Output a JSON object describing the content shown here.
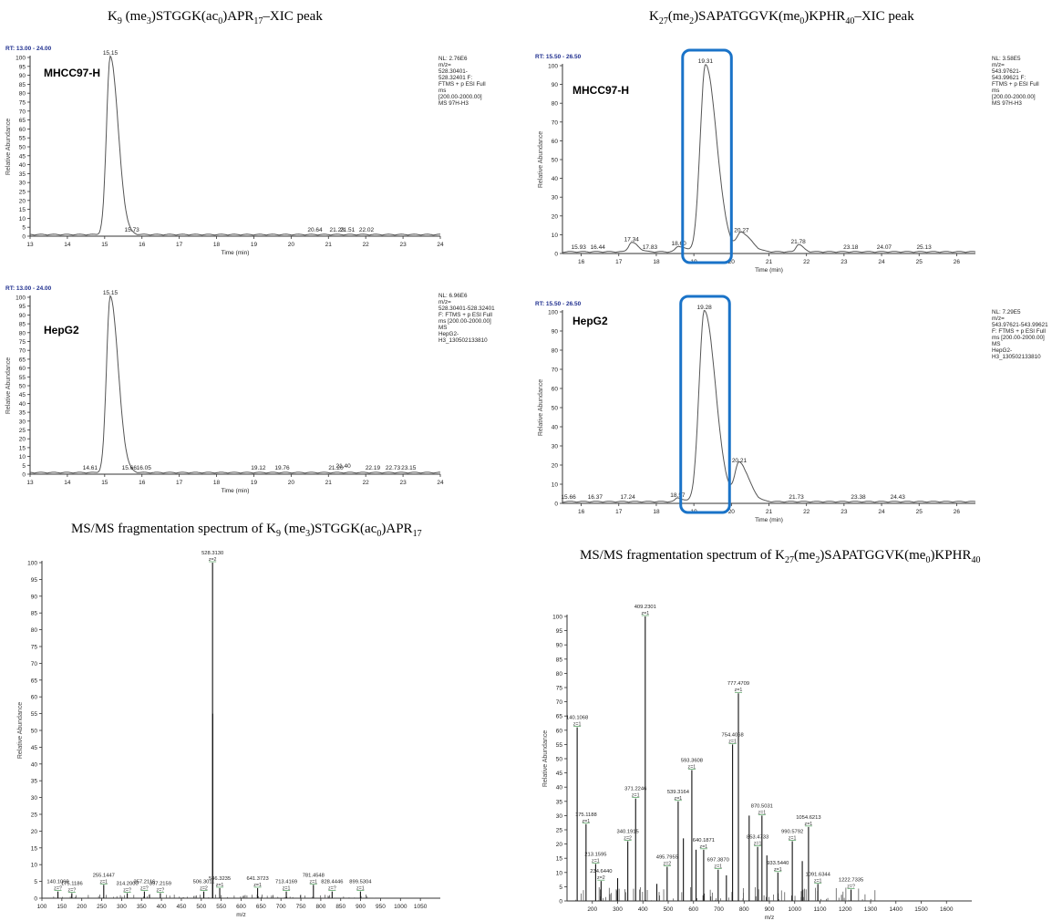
{
  "titles": {
    "t1": {
      "a": "K",
      "s1": "9",
      "b": " (me",
      "s2": "3",
      "c": ")STGGK(ac",
      "s3": "0",
      "d": ")APR",
      "s4": "17",
      "e": "–XIC peak"
    },
    "t2": {
      "a": "K",
      "s1": "27",
      "b": "(me",
      "s2": "2",
      "c": ")SAPATGGVK(me",
      "s3": "0",
      "d": ")KPHR",
      "s4": "40",
      "e": "–XIC peak"
    },
    "t3": {
      "a": "MS/MS fragmentation spectrum of K",
      "s1": "9",
      "b": " (me",
      "s2": "3",
      "c": ")STGGK(ac",
      "s3": "0",
      "d": ")APR",
      "s4": "17",
      "e": ""
    },
    "t4": {
      "a": "MS/MS fragmentation spectrum of K",
      "s1": "27",
      "b": "(me",
      "s2": "2",
      "c": ")SAPATGGVK(me",
      "s3": "0",
      "d": ")KPHR",
      "s4": "40",
      "e": ""
    }
  },
  "colors": {
    "trace": "#555555",
    "highlight": "#1a73c8",
    "rtlabel": "#1f2f8f",
    "frag": "#2a8a3a"
  },
  "chart_data": [
    {
      "type": "line",
      "rt_range": "RT: 13.00 - 24.00",
      "sample": "MHCC97-H",
      "ylabel": "Relative Abundance",
      "xlabel": "Time (min)",
      "xlim": [
        13,
        24
      ],
      "ylim": [
        0,
        100
      ],
      "xticks": [
        13,
        14,
        15,
        16,
        17,
        18,
        19,
        20,
        21,
        22,
        23,
        24
      ],
      "yticks": [
        0,
        5,
        10,
        15,
        20,
        25,
        30,
        35,
        40,
        45,
        50,
        55,
        60,
        65,
        70,
        75,
        80,
        85,
        90,
        95,
        100
      ],
      "info": [
        "NL: 2.76E6",
        "m/z=",
        "528.30401-",
        "528.32401 F:",
        "FTMS + p ESI Full",
        "ms",
        "[200.00-2000.00]",
        "MS 97H-H3"
      ],
      "peaks": [
        {
          "x": 15.15,
          "y": 100,
          "w": 0.1
        }
      ],
      "labels": [
        {
          "x": 15.15,
          "y": 100,
          "text": "15.15"
        },
        {
          "x": 15.73,
          "y": 1,
          "text": "15.73"
        },
        {
          "x": 20.64,
          "y": 1,
          "text": "20.64"
        },
        {
          "x": 21.23,
          "y": 1,
          "text": "21.23"
        },
        {
          "x": 21.51,
          "y": 1,
          "text": "21.51"
        },
        {
          "x": 22.02,
          "y": 1,
          "text": "22.02"
        }
      ],
      "highlight": null
    },
    {
      "type": "line",
      "rt_range": "RT: 15.50 - 26.50",
      "sample": "MHCC97-H",
      "ylabel": "Relative Abundance",
      "xlabel": "Time (min)",
      "xlim": [
        15.5,
        26.5
      ],
      "ylim": [
        0,
        100
      ],
      "xticks": [
        16,
        17,
        18,
        19,
        20,
        21,
        22,
        23,
        24,
        25,
        26
      ],
      "yticks": [
        0,
        10,
        20,
        30,
        40,
        50,
        60,
        70,
        80,
        90,
        100
      ],
      "info": [
        "NL: 3.58E5",
        "m/z=",
        "543.97621-",
        "543.99621 F:",
        "FTMS + p ESI Full",
        "ms",
        "[200.00-2000.00]",
        "MS 97H-H3"
      ],
      "peaks": [
        {
          "x": 19.31,
          "y": 100,
          "w": 0.14
        },
        {
          "x": 20.27,
          "y": 10,
          "w": 0.12
        },
        {
          "x": 17.34,
          "y": 5,
          "w": 0.08
        },
        {
          "x": 18.6,
          "y": 3,
          "w": 0.08
        },
        {
          "x": 21.78,
          "y": 4,
          "w": 0.06
        }
      ],
      "labels": [
        {
          "x": 19.31,
          "y": 100,
          "text": "19.31"
        },
        {
          "x": 20.27,
          "y": 10,
          "text": "20.27"
        },
        {
          "x": 15.93,
          "y": 1,
          "text": "15.93"
        },
        {
          "x": 16.44,
          "y": 1,
          "text": "16.44"
        },
        {
          "x": 17.34,
          "y": 5,
          "text": "17.34"
        },
        {
          "x": 17.83,
          "y": 1,
          "text": "17.83"
        },
        {
          "x": 18.6,
          "y": 3,
          "text": "18.60"
        },
        {
          "x": 21.78,
          "y": 4,
          "text": "21.78"
        },
        {
          "x": 23.18,
          "y": 1,
          "text": "23.18"
        },
        {
          "x": 24.07,
          "y": 1,
          "text": "24.07"
        },
        {
          "x": 25.13,
          "y": 1,
          "text": "25.13"
        }
      ],
      "highlight": [
        18.7,
        20.0
      ]
    },
    {
      "type": "line",
      "rt_range": "RT: 13.00 - 24.00",
      "sample": "HepG2",
      "ylabel": "Relative Abundance",
      "xlabel": "Time (min)",
      "xlim": [
        13,
        24
      ],
      "ylim": [
        0,
        100
      ],
      "xticks": [
        13,
        14,
        15,
        16,
        17,
        18,
        19,
        20,
        21,
        22,
        23,
        24
      ],
      "yticks": [
        0,
        5,
        10,
        15,
        20,
        25,
        30,
        35,
        40,
        45,
        50,
        55,
        60,
        65,
        70,
        75,
        80,
        85,
        90,
        95,
        100
      ],
      "info": [
        "NL: 6.96E6",
        "m/z=",
        "528.30401-528.32401",
        "F: FTMS + p ESI Full",
        "ms [200.00-2000.00]",
        "MS",
        "HepG2-",
        "H3_130502133810"
      ],
      "peaks": [
        {
          "x": 15.15,
          "y": 100,
          "w": 0.1
        }
      ],
      "labels": [
        {
          "x": 15.15,
          "y": 100,
          "text": "15.15"
        },
        {
          "x": 14.61,
          "y": 1,
          "text": "14.61"
        },
        {
          "x": 15.66,
          "y": 1,
          "text": "15.66"
        },
        {
          "x": 16.05,
          "y": 1,
          "text": "16.05"
        },
        {
          "x": 19.12,
          "y": 1,
          "text": "19.12"
        },
        {
          "x": 19.76,
          "y": 1,
          "text": "19.76"
        },
        {
          "x": 21.2,
          "y": 1,
          "text": "21.20"
        },
        {
          "x": 21.4,
          "y": 2,
          "text": "21.40"
        },
        {
          "x": 22.19,
          "y": 1,
          "text": "22.19"
        },
        {
          "x": 22.73,
          "y": 1,
          "text": "22.73"
        },
        {
          "x": 23.15,
          "y": 1,
          "text": "23.15"
        }
      ],
      "highlight": null
    },
    {
      "type": "line",
      "rt_range": "RT: 15.50 - 26.50",
      "sample": "HepG2",
      "ylabel": "Relative Abundance",
      "xlabel": "Time (min)",
      "xlim": [
        15.5,
        26.5
      ],
      "ylim": [
        0,
        100
      ],
      "xticks": [
        16,
        17,
        18,
        19,
        20,
        21,
        22,
        23,
        24,
        25,
        26
      ],
      "yticks": [
        0,
        10,
        20,
        30,
        40,
        50,
        60,
        70,
        80,
        90,
        100
      ],
      "info": [
        "NL: 7.29E5",
        "m/z=",
        "543.97621-543.99621",
        "F: FTMS + p ESI Full",
        "ms [200.00-2000.00]",
        "MS",
        "HepG2-",
        "H3_130502133810"
      ],
      "peaks": [
        {
          "x": 19.28,
          "y": 100,
          "w": 0.14
        },
        {
          "x": 20.21,
          "y": 20,
          "w": 0.12
        },
        {
          "x": 18.57,
          "y": 2,
          "w": 0.06
        }
      ],
      "labels": [
        {
          "x": 19.28,
          "y": 100,
          "text": "19.28"
        },
        {
          "x": 20.21,
          "y": 20,
          "text": "20.21"
        },
        {
          "x": 15.66,
          "y": 1,
          "text": "15.66"
        },
        {
          "x": 16.37,
          "y": 1,
          "text": "16.37"
        },
        {
          "x": 17.24,
          "y": 1,
          "text": "17.24"
        },
        {
          "x": 18.57,
          "y": 2,
          "text": "18.57"
        },
        {
          "x": 21.73,
          "y": 1,
          "text": "21.73"
        },
        {
          "x": 23.38,
          "y": 1,
          "text": "23.38"
        },
        {
          "x": 24.43,
          "y": 1,
          "text": "24.43"
        }
      ],
      "highlight": [
        18.65,
        19.95
      ]
    },
    {
      "type": "bar",
      "ylabel": "Relative Abundance",
      "xlabel": "m/z",
      "xlim": [
        100,
        1100
      ],
      "ylim": [
        0,
        100
      ],
      "xticks": [
        100,
        150,
        200,
        250,
        300,
        350,
        400,
        450,
        500,
        550,
        600,
        650,
        700,
        750,
        800,
        850,
        900,
        950,
        1000,
        1050
      ],
      "yticks": [
        0,
        5,
        10,
        15,
        20,
        25,
        30,
        35,
        40,
        45,
        50,
        55,
        60,
        65,
        70,
        75,
        80,
        85,
        90,
        95,
        100
      ],
      "peaks": [
        {
          "mz": 528.313,
          "y": 100,
          "label": "528.3130",
          "z": "z=2"
        },
        {
          "mz": 528.8,
          "y": 55
        },
        {
          "mz": 140.1069,
          "y": 2,
          "label": "140.1069",
          "z": "z=?"
        },
        {
          "mz": 175.1186,
          "y": 1.5,
          "label": "175.1186",
          "z": "z=?"
        },
        {
          "mz": 255.1447,
          "y": 4,
          "label": "255.1447",
          "z": "z=1"
        },
        {
          "mz": 314.2,
          "y": 1.5,
          "label": "314.2000",
          "z": "z=?"
        },
        {
          "mz": 357.2116,
          "y": 2,
          "label": "357.2116",
          "z": "z=?"
        },
        {
          "mz": 397.2159,
          "y": 1.5,
          "label": "397.2159",
          "z": "z=?"
        },
        {
          "mz": 506.3011,
          "y": 2,
          "label": "506.3011",
          "z": "z=2"
        },
        {
          "mz": 546.3235,
          "y": 3,
          "label": "546.3235",
          "z": "z=1"
        },
        {
          "mz": 641.3723,
          "y": 3,
          "label": "641.3723",
          "z": "z=1"
        },
        {
          "mz": 713.4169,
          "y": 2,
          "label": "713.4169",
          "z": "z=1"
        },
        {
          "mz": 781.4548,
          "y": 4,
          "label": "781.4548",
          "z": "z=1"
        },
        {
          "mz": 828.4446,
          "y": 2,
          "label": "828.4446",
          "z": "z=?"
        },
        {
          "mz": 899.5304,
          "y": 2,
          "label": "899.5304",
          "z": "z=1"
        }
      ]
    },
    {
      "type": "bar",
      "ylabel": "Relative Abundance",
      "xlabel": "m/z",
      "xlim": [
        100,
        1700
      ],
      "ylim": [
        0,
        100
      ],
      "xticks": [
        200,
        300,
        400,
        500,
        600,
        700,
        800,
        900,
        1000,
        1100,
        1200,
        1300,
        1400,
        1500,
        1600
      ],
      "yticks": [
        0,
        5,
        10,
        15,
        20,
        25,
        30,
        35,
        40,
        45,
        50,
        55,
        60,
        65,
        70,
        75,
        80,
        85,
        90,
        95,
        100
      ],
      "peaks": [
        {
          "mz": 409.2301,
          "y": 100,
          "label": "409.2301",
          "z": "z=1"
        },
        {
          "mz": 777.4709,
          "y": 73,
          "label": "777.4709",
          "z": "z=1"
        },
        {
          "mz": 140.1068,
          "y": 61,
          "label": "140.1068",
          "z": "z=1"
        },
        {
          "mz": 754.4068,
          "y": 55,
          "label": "754.4068",
          "z": "z=1"
        },
        {
          "mz": 593.3608,
          "y": 46,
          "label": "593.3608",
          "z": "z=1"
        },
        {
          "mz": 371.2246,
          "y": 36,
          "label": "371.2246",
          "z": "z=1"
        },
        {
          "mz": 539.3164,
          "y": 35,
          "label": "539.3164",
          "z": "z=1"
        },
        {
          "mz": 870.5031,
          "y": 30,
          "label": "870.5031",
          "z": "z=1"
        },
        {
          "mz": 175.1188,
          "y": 27,
          "label": "175.1188",
          "z": "z=1"
        },
        {
          "mz": 1054.6213,
          "y": 26,
          "label": "1054.6213",
          "z": "z=1"
        },
        {
          "mz": 340.1915,
          "y": 21,
          "label": "340.1915",
          "z": "z=2"
        },
        {
          "mz": 990.5792,
          "y": 21,
          "label": "990.5792",
          "z": "z=1"
        },
        {
          "mz": 853.4733,
          "y": 19,
          "label": "853.4733",
          "z": "z=1"
        },
        {
          "mz": 640.1871,
          "y": 18,
          "label": "640.1871",
          "z": "z=1"
        },
        {
          "mz": 213.1595,
          "y": 13,
          "label": "213.1595",
          "z": "z=1"
        },
        {
          "mz": 495.7955,
          "y": 12,
          "label": "495.7955",
          "z": "z=2"
        },
        {
          "mz": 697.387,
          "y": 11,
          "label": "697.3870",
          "z": "z=1"
        },
        {
          "mz": 933.544,
          "y": 10,
          "label": "933.5440",
          "z": "z=1"
        },
        {
          "mz": 234.644,
          "y": 7,
          "label": "234.6440",
          "z": "z=2"
        },
        {
          "mz": 1091.6344,
          "y": 6,
          "label": "1091.6344",
          "z": "z=1"
        },
        {
          "mz": 1222.7335,
          "y": 4,
          "label": "1222.7335",
          "z": "z=?"
        },
        {
          "mz": 560,
          "y": 22
        },
        {
          "mz": 610,
          "y": 18
        },
        {
          "mz": 820,
          "y": 30
        },
        {
          "mz": 890,
          "y": 16
        },
        {
          "mz": 1030,
          "y": 14
        },
        {
          "mz": 300,
          "y": 8
        },
        {
          "mz": 455,
          "y": 6
        },
        {
          "mz": 730,
          "y": 9
        }
      ]
    }
  ]
}
